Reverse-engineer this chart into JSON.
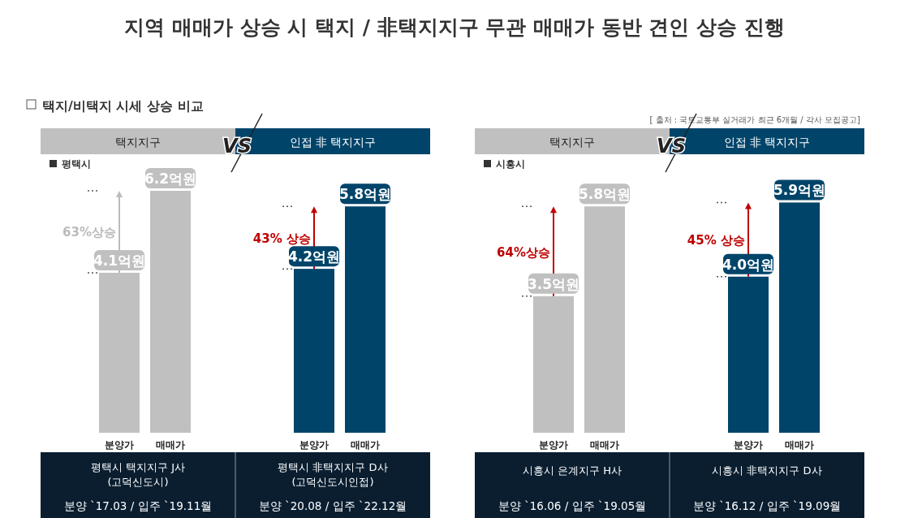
{
  "chart_data": [
    {
      "type": "bar",
      "title": "택지지구",
      "subtitle": "평택시",
      "categories": [
        "분양가",
        "매매가"
      ],
      "values": [
        4.1,
        6.2
      ],
      "colors": [
        "#c0c0c0",
        "#c0c0c0"
      ],
      "data_labels": true,
      "value_labels": [
        "4.1억원",
        "6.2억원"
      ],
      "annotations": [
        "지역 매매가 상승 시 택지 / 非택지지구 무관 매매가 동반 견인 상승 진행",
        "택지/비택지 시세 상승 비교",
        "[ 출처 : 국토교통부 실거래가 최근 6개월 / 각사 모집공고]",
        "VS",
        "63%상승",
        "평택시 택지지구 J사\n(고덕신도시)",
        "분양 `17.03 / 입주 `19.11월"
      ]
    },
    {
      "type": "bar",
      "title": "인접  非  택지지구",
      "categories": [
        "분양가",
        "매매가"
      ],
      "values": [
        4.2,
        5.8
      ],
      "colors": [
        "#00446a",
        "#00446a"
      ],
      "data_labels": true,
      "value_labels": [
        "4.2억원",
        "5.8억원"
      ],
      "annotations": [
        "43% 상승",
        "평택시 非택지지구 D사\n(고덕신도시인접)",
        "분양 `20.08 / 입주 `22.12월"
      ]
    },
    {
      "type": "bar",
      "title": "택지지구",
      "subtitle": "시흥시",
      "categories": [
        "분양가",
        "매매가"
      ],
      "values": [
        3.5,
        5.8
      ],
      "colors": [
        "#c0c0c0",
        "#c0c0c0"
      ],
      "data_labels": true,
      "value_labels": [
        "3.5억원",
        "5.8억원"
      ],
      "annotations": [
        "VS",
        "64%상승",
        "시흥시 은계지구 H사",
        "분양 `16.06 / 입주 `19.05월"
      ]
    },
    {
      "type": "bar",
      "title": "인접  非  택지지구",
      "categories": [
        "분양가",
        "매매가"
      ],
      "values": [
        4.0,
        5.9
      ],
      "colors": [
        "#00446a",
        "#00446a"
      ],
      "data_labels": true,
      "value_labels": [
        "4.0억원",
        "5.9억원"
      ],
      "annotations": [
        "45% 상승",
        "시흥시 非택지지구 D사",
        "분양 `16.12 / 입주 `19.09월"
      ]
    }
  ]
}
